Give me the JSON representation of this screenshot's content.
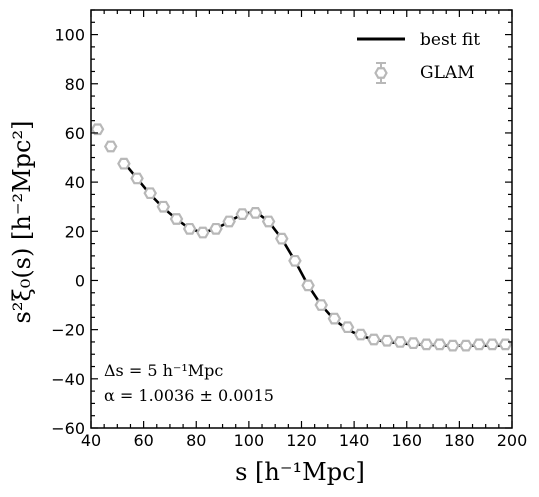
{
  "chart_data": {
    "type": "line",
    "title": "",
    "xlabel": "s [h⁻¹Mpc]",
    "ylabel": "s²ξ₀(s) [h⁻²Mpc²]",
    "xlim": [
      40,
      200
    ],
    "ylim": [
      -60,
      110
    ],
    "x_major_ticks": [
      40,
      60,
      80,
      100,
      120,
      140,
      160,
      180,
      200
    ],
    "y_major_ticks": [
      -60,
      -40,
      -20,
      0,
      20,
      40,
      60,
      80,
      100
    ],
    "x_tick_labels": [
      "40",
      "60",
      "80",
      "100",
      "120",
      "140",
      "160",
      "180",
      "200"
    ],
    "y_tick_labels": [
      "−60",
      "−40",
      "−20",
      "0",
      "20",
      "40",
      "60",
      "80",
      "100"
    ],
    "grid": false,
    "legend_position": "top-right",
    "legend": {
      "best_fit_label": "best fit",
      "glam_label": "GLAM"
    },
    "annotations": {
      "delta_s": "Δs = 5 h⁻¹Mpc",
      "alpha": "α = 1.0036 ± 0.0015"
    },
    "colors": {
      "best_fit": "#000000",
      "glam": "#b8b8b8"
    },
    "series": [
      {
        "name": "best fit",
        "kind": "line",
        "x": [
          52.5,
          57.5,
          62.5,
          67.5,
          72.5,
          77.5,
          82.5,
          87.5,
          92.5,
          97.5,
          102.5,
          107.5,
          112.5,
          117.5,
          122.5,
          127.5,
          132.5,
          137.5,
          142.5,
          147.5,
          152.5,
          157.5,
          162.5,
          167.5,
          172.5,
          177.5,
          182.5,
          187.5,
          192.5,
          197.5
        ],
        "y": [
          48,
          41.5,
          35,
          29.5,
          25,
          21,
          19.5,
          21,
          24,
          27,
          28,
          24,
          17,
          8,
          -2,
          -10,
          -16,
          -20,
          -22.5,
          -24,
          -25,
          -25.5,
          -26,
          -26,
          -26.5,
          -26.5,
          -26.5,
          -26.5,
          -26.5,
          -26.5
        ]
      },
      {
        "name": "GLAM",
        "kind": "markers",
        "x": [
          42.5,
          47.5,
          52.5,
          57.5,
          62.5,
          67.5,
          72.5,
          77.5,
          82.5,
          87.5,
          92.5,
          97.5,
          102.5,
          107.5,
          112.5,
          117.5,
          122.5,
          127.5,
          132.5,
          137.5,
          142.5,
          147.5,
          152.5,
          157.5,
          162.5,
          167.5,
          172.5,
          177.5,
          182.5,
          187.5,
          192.5,
          197.5
        ],
        "y": [
          61.5,
          54.5,
          47.5,
          41.5,
          35.5,
          30,
          25,
          21,
          19.5,
          21,
          24,
          27,
          27.5,
          24,
          17,
          8,
          -2,
          -10,
          -15.5,
          -19,
          -22,
          -24,
          -24.5,
          -25,
          -25.5,
          -26,
          -26,
          -26.5,
          -26.5,
          -26,
          -26,
          -26
        ]
      }
    ]
  }
}
